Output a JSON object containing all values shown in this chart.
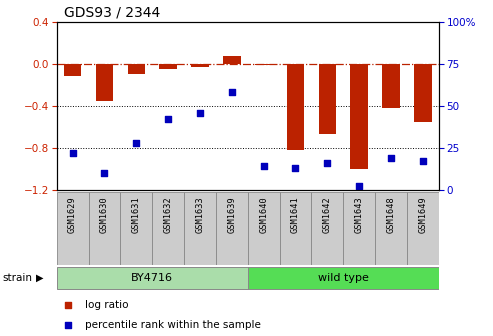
{
  "title": "GDS93 / 2344",
  "samples": [
    "GSM1629",
    "GSM1630",
    "GSM1631",
    "GSM1632",
    "GSM1633",
    "GSM1639",
    "GSM1640",
    "GSM1641",
    "GSM1642",
    "GSM1643",
    "GSM1648",
    "GSM1649"
  ],
  "log_ratio": [
    -0.12,
    -0.35,
    -0.1,
    -0.05,
    -0.03,
    0.07,
    -0.01,
    -0.82,
    -0.67,
    -1.0,
    -0.42,
    -0.55
  ],
  "percentile_rank": [
    22,
    10,
    28,
    42,
    46,
    58,
    14,
    13,
    16,
    2,
    19,
    17
  ],
  "strain_groups": [
    {
      "label": "BY4716",
      "start": 0,
      "end": 6,
      "color": "#aaddaa"
    },
    {
      "label": "wild type",
      "start": 6,
      "end": 12,
      "color": "#55dd55"
    }
  ],
  "bar_color": "#bb2200",
  "dot_color": "#0000bb",
  "ylim_left": [
    -1.2,
    0.4
  ],
  "ylim_right": [
    0,
    100
  ],
  "yticks_left": [
    -1.2,
    -0.8,
    -0.4,
    0.0,
    0.4
  ],
  "yticks_right": [
    0,
    25,
    50,
    75,
    100
  ],
  "hline_y": 0.0,
  "dotted_lines": [
    -0.4,
    -0.8
  ],
  "tick_label_color_left": "#cc2200",
  "tick_label_color_right": "#0000cc"
}
